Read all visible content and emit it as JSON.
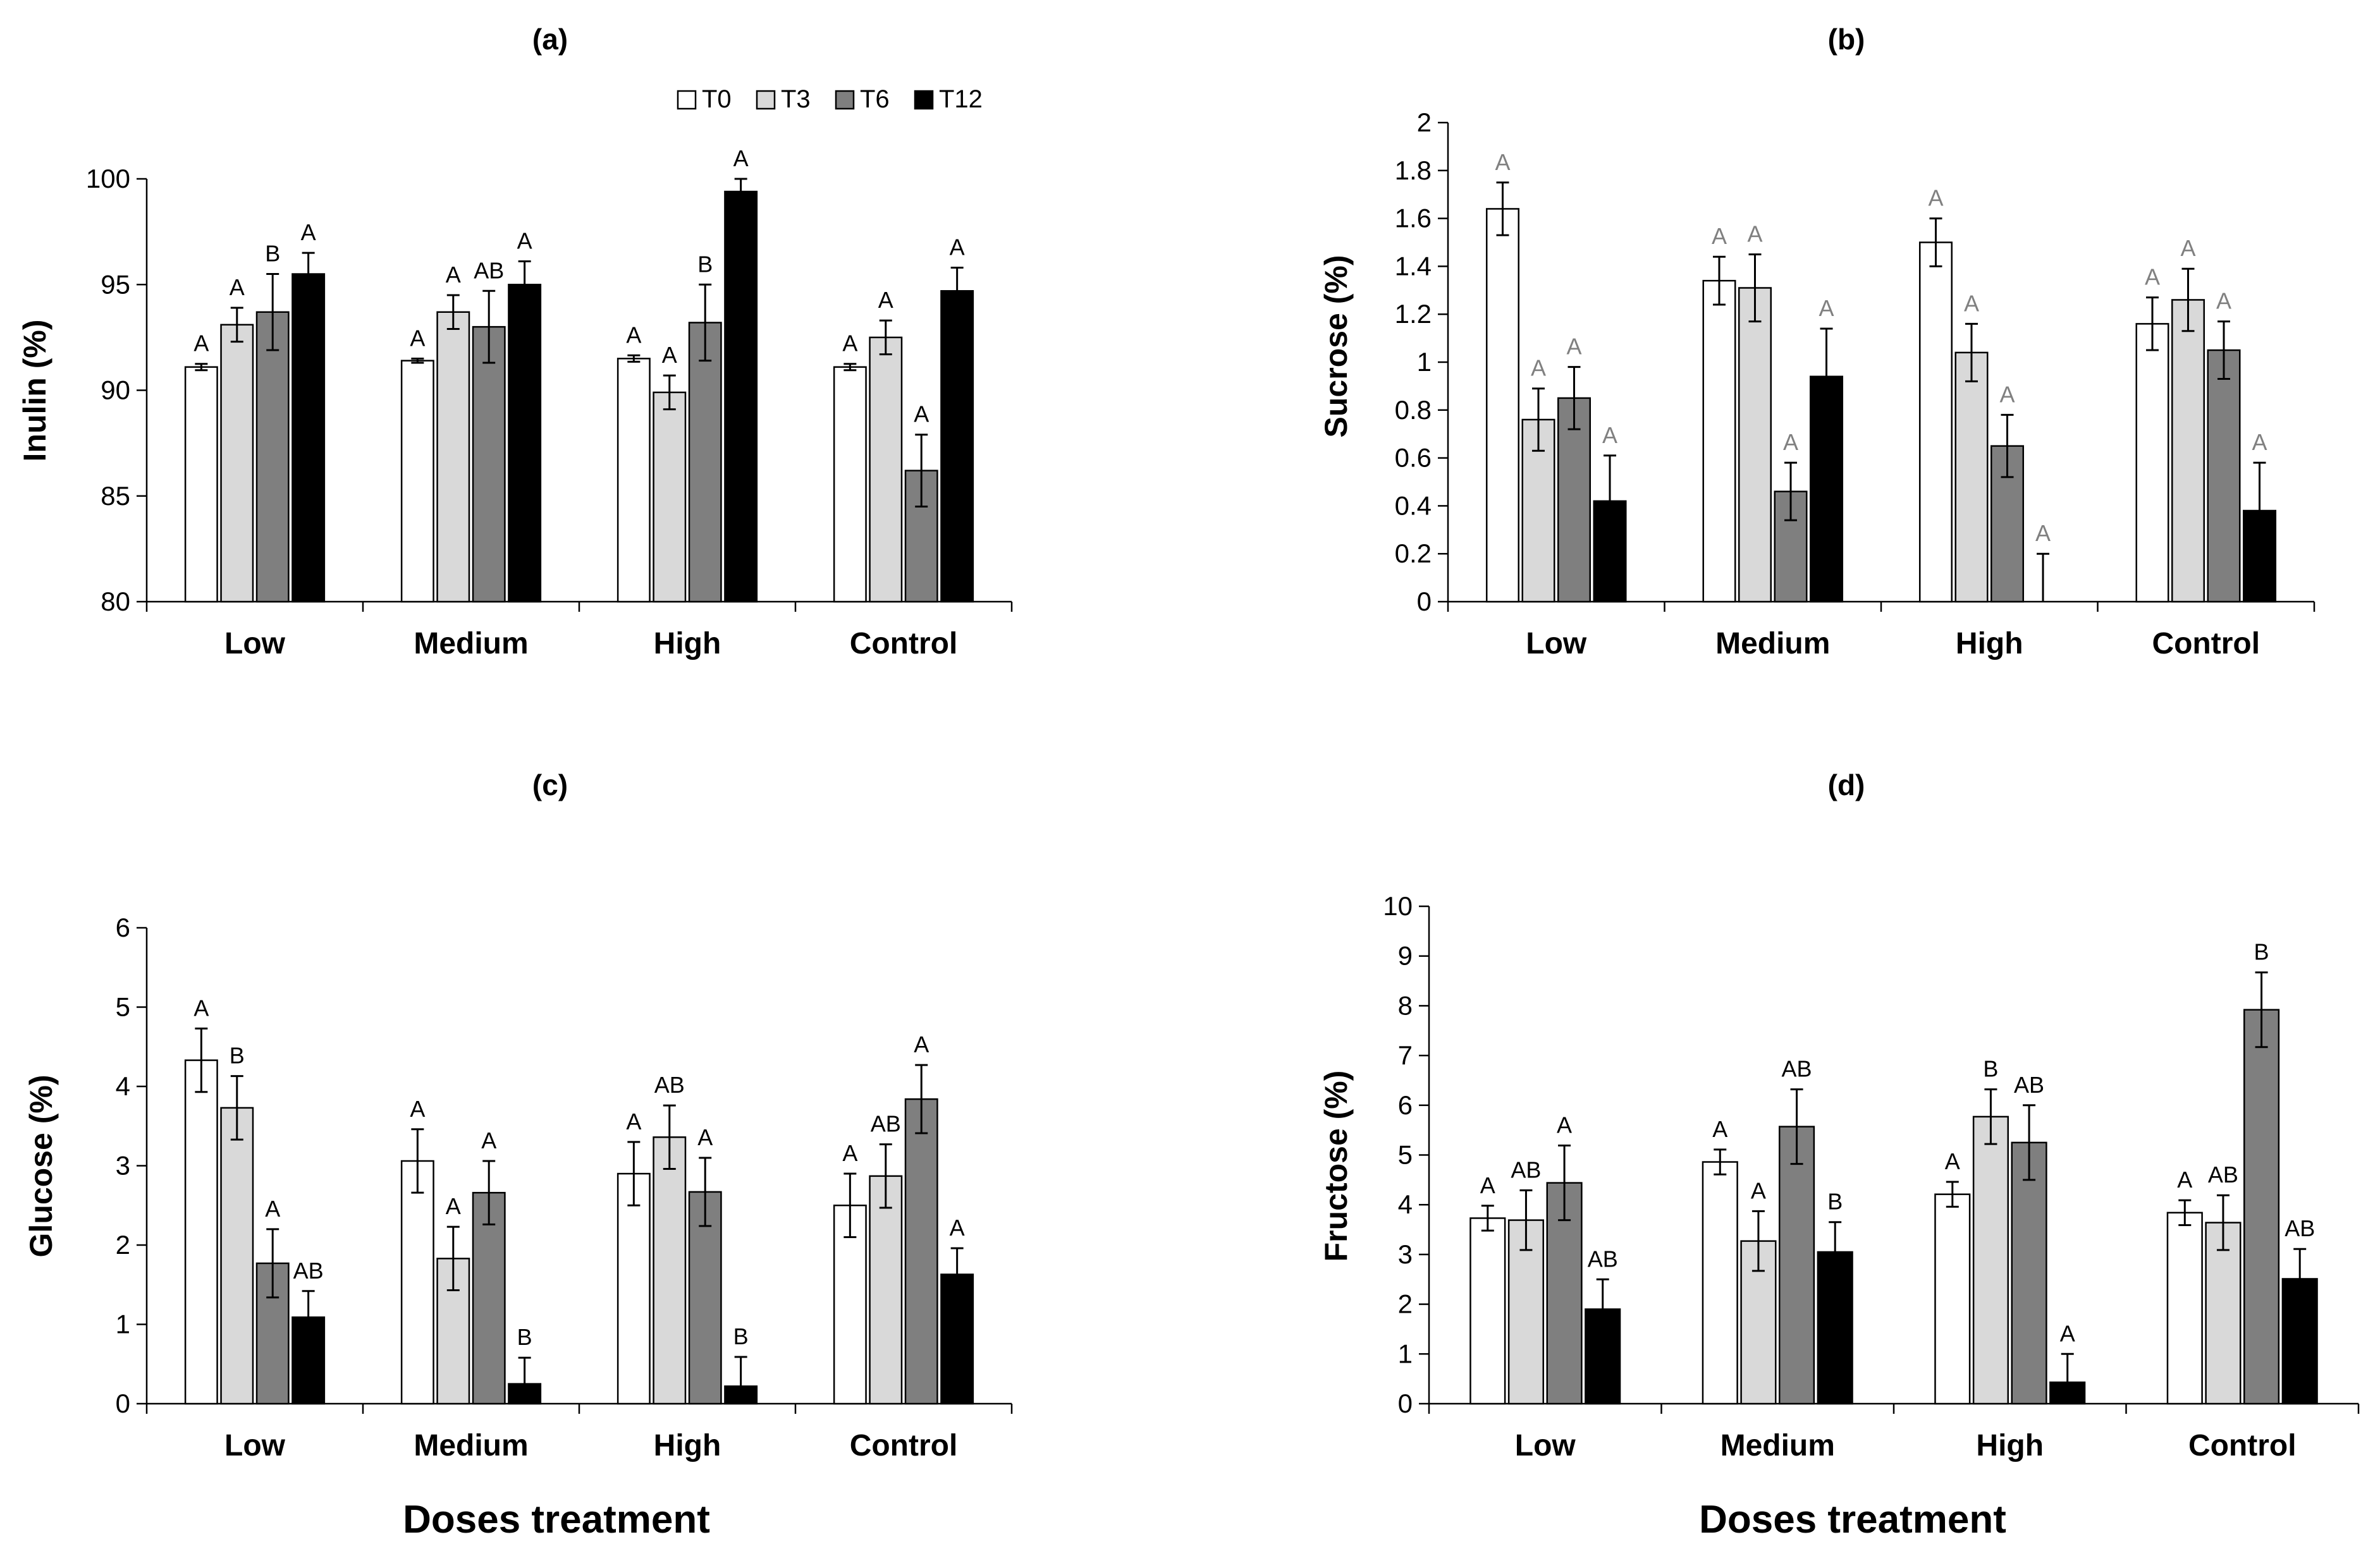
{
  "legend": {
    "series": [
      {
        "name": "T0",
        "color": "#ffffff"
      },
      {
        "name": "T3",
        "color": "#d9d9d9"
      },
      {
        "name": "T6",
        "color": "#7f7f7f"
      },
      {
        "name": "T12",
        "color": "#000000"
      }
    ]
  },
  "x_axis_title": "Doses treatment",
  "chart_data": [
    {
      "type": "bar",
      "title": "(a)",
      "ylabel": "Inulin  (%)",
      "categories": [
        "Low",
        "Medium",
        "High",
        "Control"
      ],
      "ylim": [
        80,
        100
      ],
      "yticks": [
        "80",
        "85",
        "90",
        "95",
        "100"
      ],
      "letter_color": "#000000",
      "series": [
        {
          "name": "T0",
          "values": [
            91.1,
            91.4,
            91.5,
            91.1
          ],
          "errors": [
            0.15,
            0.1,
            0.15,
            0.15
          ],
          "letters": [
            "A",
            "A",
            "A",
            "A"
          ]
        },
        {
          "name": "T3",
          "values": [
            93.1,
            93.7,
            89.9,
            92.5
          ],
          "errors": [
            0.8,
            0.8,
            0.8,
            0.8
          ],
          "letters": [
            "A",
            "A",
            "A",
            "A"
          ]
        },
        {
          "name": "T6",
          "values": [
            93.7,
            93.0,
            93.2,
            86.2
          ],
          "errors": [
            1.8,
            1.7,
            1.8,
            1.7
          ],
          "letters": [
            "B",
            "AB",
            "B",
            "A"
          ]
        },
        {
          "name": "T12",
          "values": [
            95.5,
            95.0,
            99.4,
            94.7
          ],
          "errors": [
            1.0,
            1.1,
            0.6,
            1.1
          ],
          "letters": [
            "A",
            "A",
            "A",
            "A"
          ]
        }
      ]
    },
    {
      "type": "bar",
      "title": "(b)",
      "ylabel": "Sucrose  (%)",
      "categories": [
        "Low",
        "Medium",
        "High",
        "Control"
      ],
      "ylim": [
        0,
        2
      ],
      "yticks": [
        "0",
        "0.2",
        "0.4",
        "0.6",
        "0.8",
        "1",
        "1.2",
        "1.4",
        "1.6",
        "1.8",
        "2"
      ],
      "letter_color": "#808080",
      "series": [
        {
          "name": "T0",
          "values": [
            1.64,
            1.34,
            1.5,
            1.16
          ],
          "errors": [
            0.11,
            0.1,
            0.1,
            0.11
          ],
          "letters": [
            "A",
            "A",
            "A",
            "A"
          ]
        },
        {
          "name": "T3",
          "values": [
            0.76,
            1.31,
            1.04,
            1.26
          ],
          "errors": [
            0.13,
            0.14,
            0.12,
            0.13
          ],
          "letters": [
            "A",
            "A",
            "A",
            "A"
          ]
        },
        {
          "name": "T6",
          "values": [
            0.85,
            0.46,
            0.65,
            1.05
          ],
          "errors": [
            0.13,
            0.12,
            0.13,
            0.12
          ],
          "letters": [
            "A",
            "A",
            "A",
            "A"
          ]
        },
        {
          "name": "T12",
          "values": [
            0.42,
            0.94,
            0.0,
            0.38
          ],
          "errors": [
            0.19,
            0.2,
            0.2,
            0.2
          ],
          "letters": [
            "A",
            "A",
            "A",
            "A"
          ]
        }
      ]
    },
    {
      "type": "bar",
      "title": "(c)",
      "ylabel": "Glucose (%)",
      "categories": [
        "Low",
        "Medium",
        "High",
        "Control"
      ],
      "ylim": [
        0,
        6
      ],
      "yticks": [
        "0",
        "1",
        "2",
        "3",
        "4",
        "5",
        "6"
      ],
      "letter_color": "#000000",
      "series": [
        {
          "name": "T0",
          "values": [
            4.33,
            3.06,
            2.9,
            2.5
          ],
          "errors": [
            0.4,
            0.4,
            0.4,
            0.4
          ],
          "letters": [
            "A",
            "A",
            "A",
            "A"
          ]
        },
        {
          "name": "T3",
          "values": [
            3.73,
            1.83,
            3.36,
            2.87
          ],
          "errors": [
            0.4,
            0.4,
            0.4,
            0.4
          ],
          "letters": [
            "B",
            "A",
            "AB",
            "AB"
          ]
        },
        {
          "name": "T6",
          "values": [
            1.77,
            2.66,
            2.67,
            3.84
          ],
          "errors": [
            0.43,
            0.4,
            0.43,
            0.43
          ],
          "letters": [
            "A",
            "A",
            "A",
            "A"
          ]
        },
        {
          "name": "T12",
          "values": [
            1.09,
            0.25,
            0.22,
            1.63
          ],
          "errors": [
            0.33,
            0.33,
            0.37,
            0.33
          ],
          "letters": [
            "AB",
            "B",
            "B",
            "A"
          ]
        }
      ]
    },
    {
      "type": "bar",
      "title": "(d)",
      "ylabel": "Fructose  (%)",
      "categories": [
        "Low",
        "Medium",
        "High",
        "Control"
      ],
      "ylim": [
        0,
        10
      ],
      "yticks": [
        "0",
        "1",
        "2",
        "3",
        "4",
        "5",
        "6",
        "7",
        "8",
        "9",
        "10"
      ],
      "letter_color": "#000000",
      "series": [
        {
          "name": "T0",
          "values": [
            3.73,
            4.86,
            4.21,
            3.84
          ],
          "errors": [
            0.25,
            0.25,
            0.25,
            0.25
          ],
          "letters": [
            "A",
            "A",
            "A",
            "A"
          ]
        },
        {
          "name": "T3",
          "values": [
            3.69,
            3.27,
            5.77,
            3.64
          ],
          "errors": [
            0.6,
            0.6,
            0.55,
            0.55
          ],
          "letters": [
            "AB",
            "A",
            "B",
            "AB"
          ]
        },
        {
          "name": "T6",
          "values": [
            4.44,
            5.57,
            5.25,
            7.92
          ],
          "errors": [
            0.75,
            0.75,
            0.75,
            0.75
          ],
          "letters": [
            "A",
            "AB",
            "AB",
            "B"
          ]
        },
        {
          "name": "T12",
          "values": [
            1.9,
            3.05,
            0.43,
            2.51
          ],
          "errors": [
            0.6,
            0.6,
            0.57,
            0.6
          ],
          "letters": [
            "AB",
            "B",
            "A",
            "AB"
          ]
        }
      ]
    }
  ]
}
